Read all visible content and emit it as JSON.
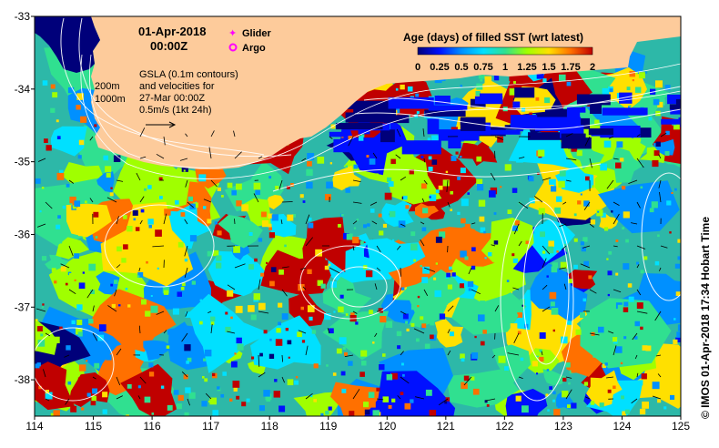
{
  "header": {
    "date": "01-Apr-2018",
    "time": "00:00Z"
  },
  "markers": {
    "glider_label": "Glider",
    "argo_label": "Argo",
    "glider_color": "#ff00ff",
    "argo_color": "#ff00ff"
  },
  "isobaths": {
    "line1": "200m",
    "line2": "1000m"
  },
  "gsla": {
    "line1": "GSLA (0.1m contours)",
    "line2": "and velocities for",
    "line3": "27-Mar 00:00Z",
    "line4": "0.5m/s (1kt 24h)"
  },
  "legend": {
    "title": "Age (days) of filled SST (wrt latest)",
    "ticks": [
      "0",
      "0.25",
      "0.5",
      "0.75",
      "1",
      "1.25",
      "1.5",
      "1.75",
      "2"
    ],
    "colors": [
      "#00007a",
      "#0010ff",
      "#0090ff",
      "#00e0ff",
      "#30e090",
      "#a0ff00",
      "#ffe000",
      "#ff7000",
      "#c00000"
    ]
  },
  "axes": {
    "x_ticks": [
      "114",
      "115",
      "116",
      "117",
      "118",
      "119",
      "120",
      "121",
      "122",
      "123",
      "124",
      "125"
    ],
    "y_ticks": [
      "-33",
      "-34",
      "-35",
      "-36",
      "-37",
      "-38"
    ],
    "x_range": [
      114,
      125
    ],
    "y_range": [
      -38.5,
      -33
    ]
  },
  "credit": "© IMOS 01-Apr-2018 17:34 Hobart Time",
  "colors": {
    "land": "#fdcb9b",
    "deep_ocean": "#00007a"
  }
}
